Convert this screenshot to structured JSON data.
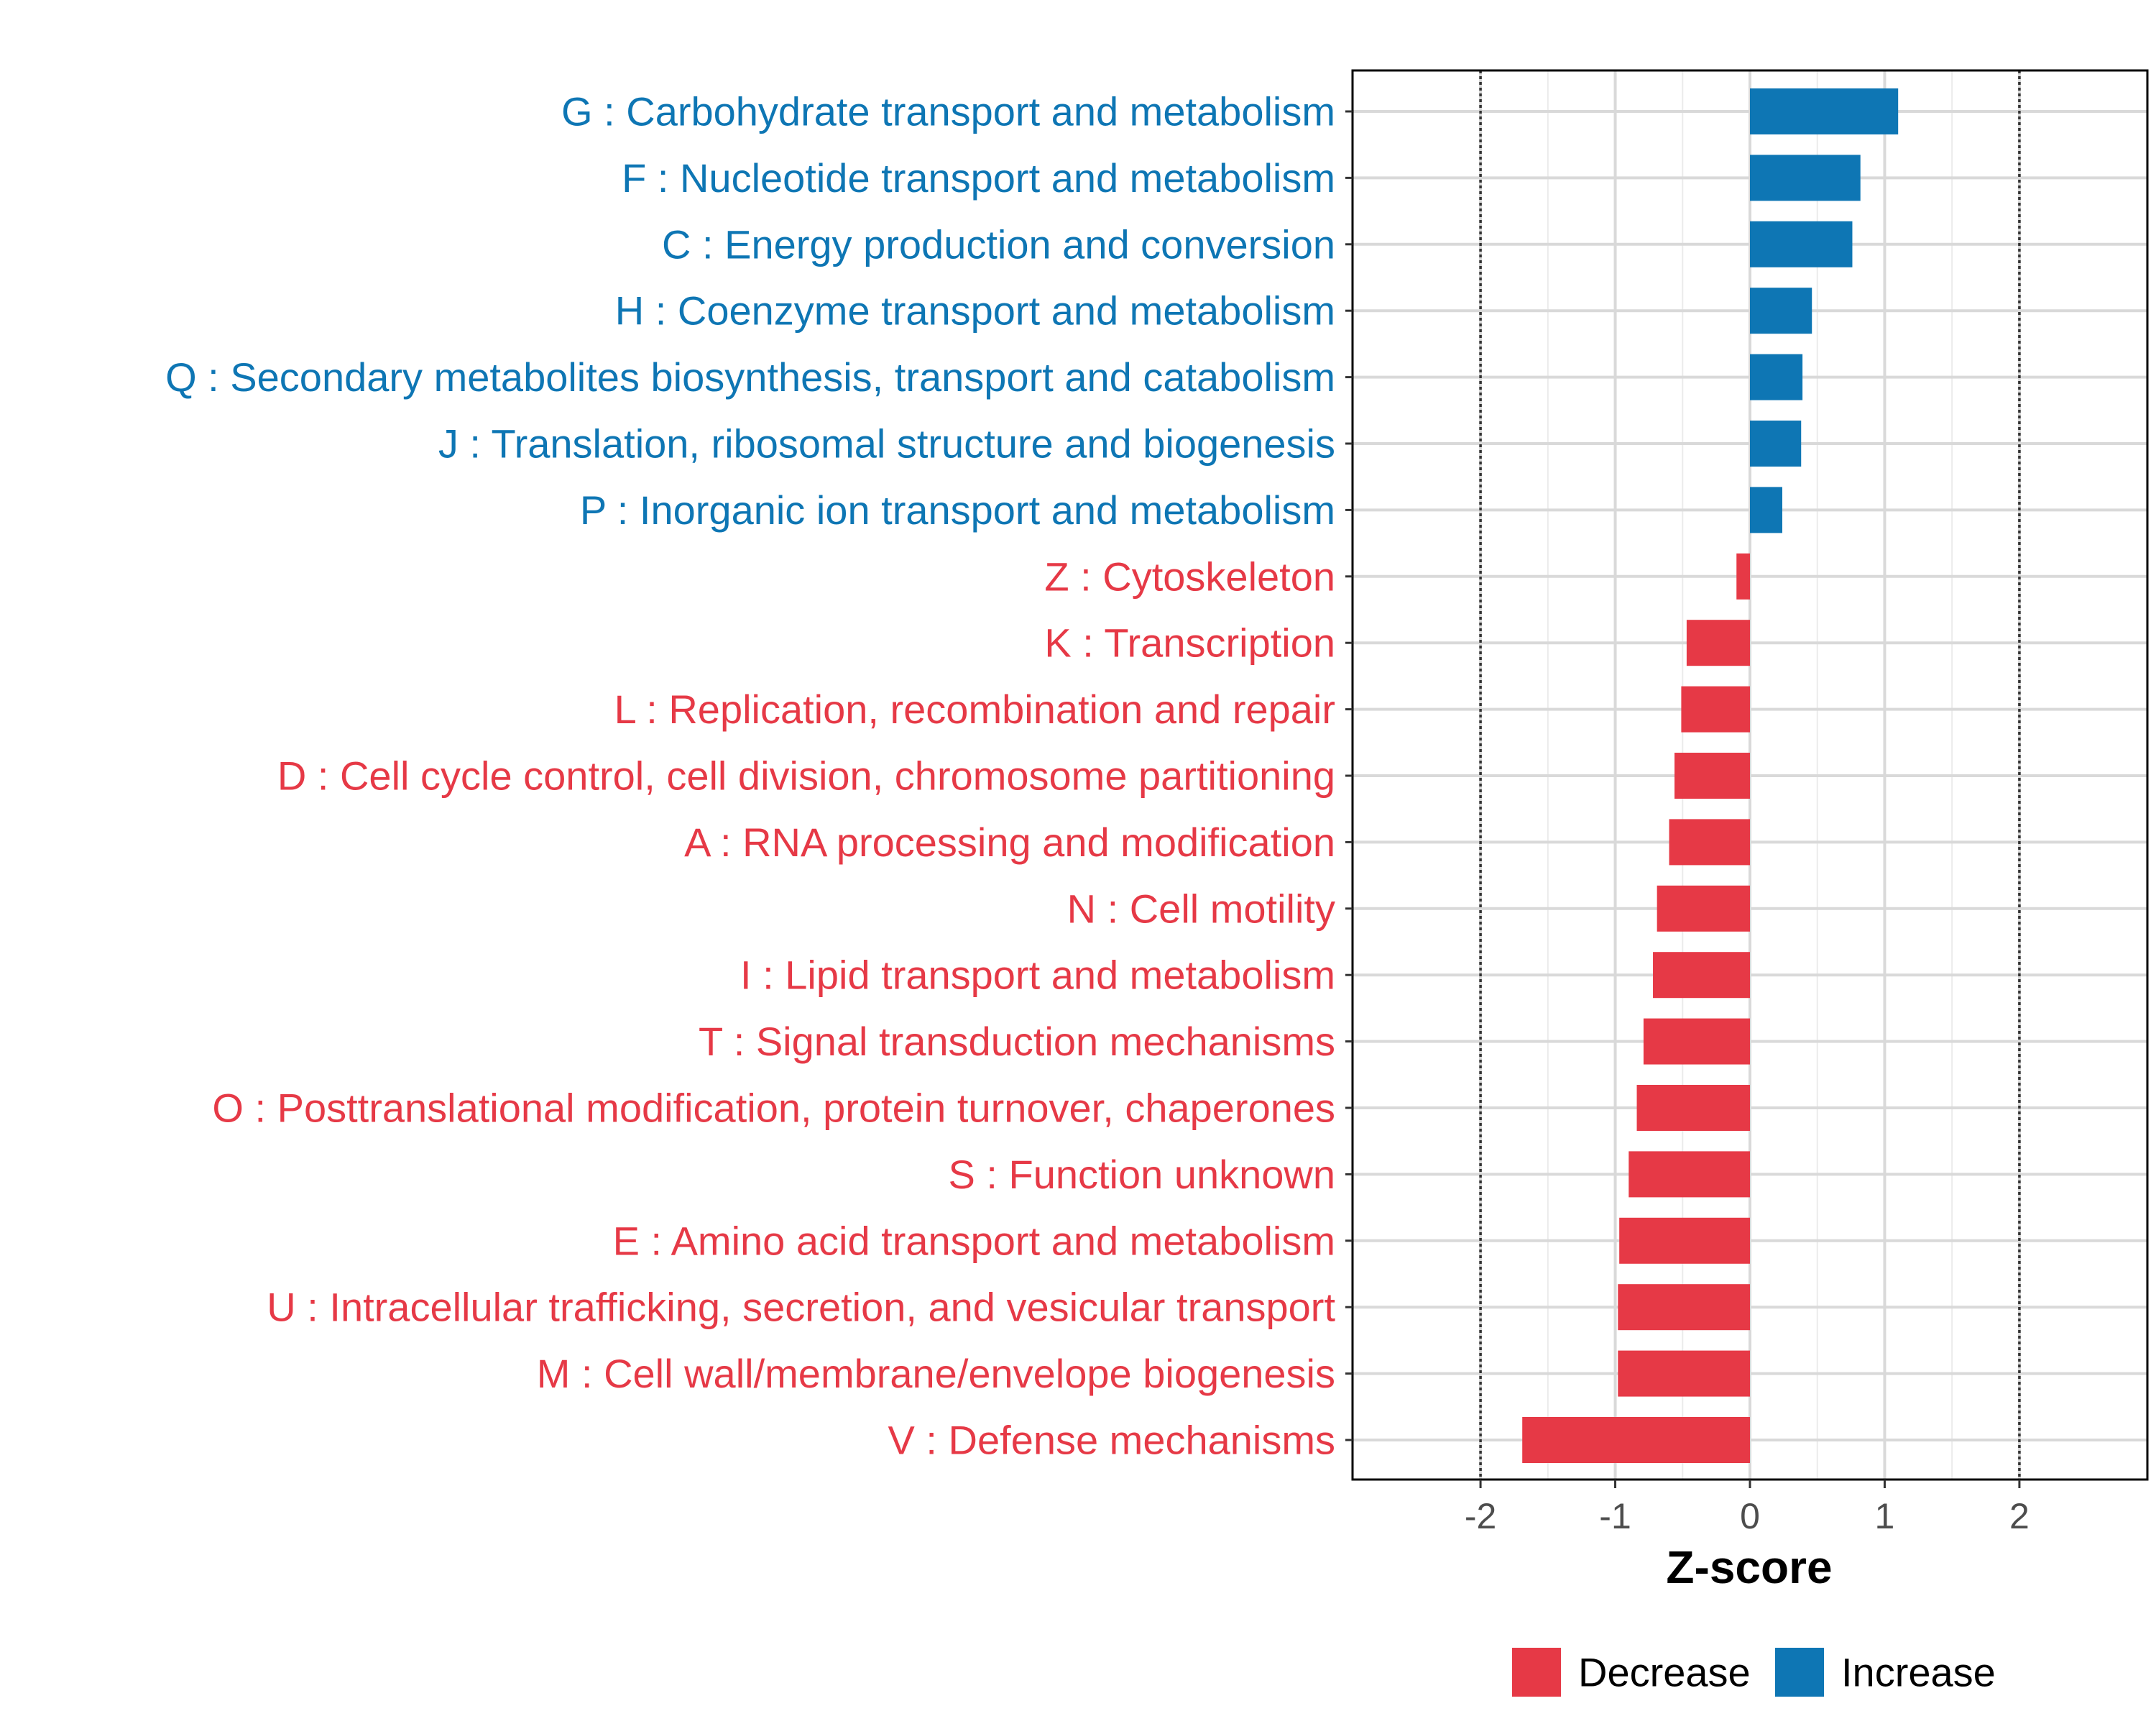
{
  "chart_data": {
    "type": "bar",
    "orientation": "horizontal",
    "xlabel": "Z-score",
    "ylabel": "",
    "xlim": [
      -2.95,
      2.95
    ],
    "xticks": [
      -2,
      -1,
      0,
      1,
      2
    ],
    "xtick_labels": [
      "-2",
      "-1",
      "0",
      "1",
      "2"
    ],
    "reference_lines": [
      -2,
      2
    ],
    "grid": true,
    "legend_position": "bottom",
    "colors": {
      "Increase": "#0E76B4",
      "Decrease": "#E63946"
    },
    "legend": [
      {
        "label": "Decrease",
        "color": "#E63946"
      },
      {
        "label": "Increase",
        "color": "#0E76B4"
      }
    ],
    "categories": [
      "G : Carbohydrate transport and metabolism",
      "F : Nucleotide transport and metabolism",
      "C : Energy production and conversion",
      "H : Coenzyme transport and metabolism",
      "Q : Secondary metabolites biosynthesis, transport and catabolism",
      "J : Translation, ribosomal structure and biogenesis",
      "P : Inorganic ion transport and metabolism",
      "Z : Cytoskeleton",
      "K : Transcription",
      "L : Replication, recombination and repair",
      "D : Cell cycle control, cell division, chromosome partitioning",
      "A : RNA processing and modification",
      "N : Cell motility",
      "I : Lipid transport and metabolism",
      "T : Signal transduction mechanisms",
      "O : Posttranslational modification, protein turnover, chaperones",
      "S : Function unknown",
      "E : Amino acid transport and metabolism",
      "U : Intracellular trafficking, secretion, and vesicular transport",
      "M : Cell wall/membrane/envelope biogenesis",
      "V : Defense mechanisms"
    ],
    "values": [
      1.1,
      0.82,
      0.76,
      0.46,
      0.39,
      0.38,
      0.24,
      -0.1,
      -0.47,
      -0.51,
      -0.56,
      -0.6,
      -0.69,
      -0.72,
      -0.79,
      -0.84,
      -0.9,
      -0.97,
      -0.98,
      -0.98,
      -1.69
    ],
    "groups": [
      "Increase",
      "Increase",
      "Increase",
      "Increase",
      "Increase",
      "Increase",
      "Increase",
      "Decrease",
      "Decrease",
      "Decrease",
      "Decrease",
      "Decrease",
      "Decrease",
      "Decrease",
      "Decrease",
      "Decrease",
      "Decrease",
      "Decrease",
      "Decrease",
      "Decrease",
      "Decrease"
    ]
  }
}
